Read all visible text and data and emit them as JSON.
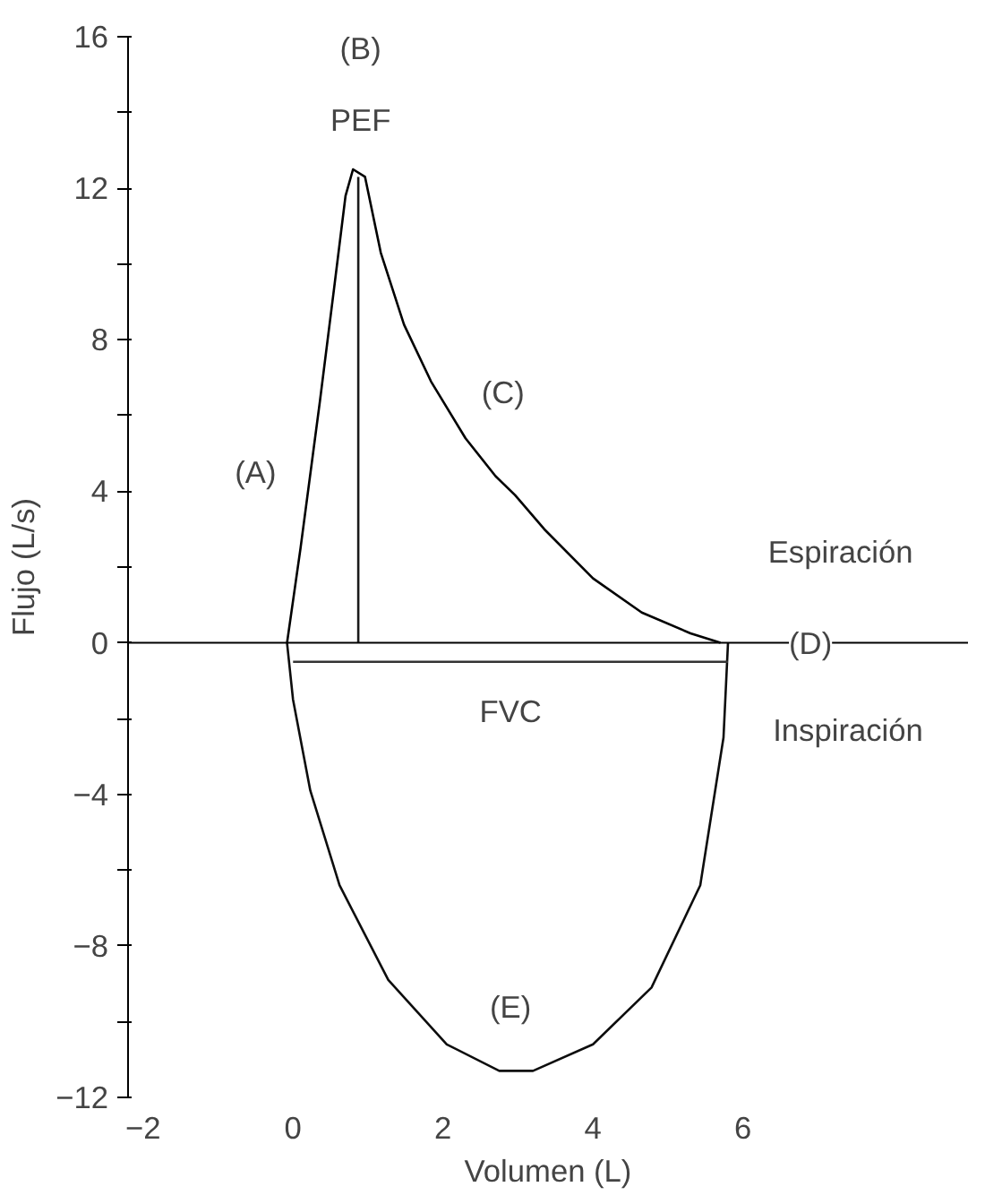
{
  "chart_data": {
    "type": "line",
    "xlabel": "Volumen (L)",
    "ylabel": "Flujo (L/s)",
    "xlim": [
      -2.2,
      9.0
    ],
    "ylim": [
      -12,
      16
    ],
    "xticks": [
      -2,
      0,
      2,
      4,
      6
    ],
    "yticks": [
      -12,
      {
        "value": -10,
        "label": null
      },
      -8,
      {
        "value": -6,
        "label": null
      },
      -4,
      {
        "value": -2,
        "label": null
      },
      0,
      {
        "value": 2,
        "label": null
      },
      4,
      {
        "value": 6,
        "label": null
      },
      8,
      {
        "value": 10,
        "label": null
      },
      12,
      {
        "value": 14,
        "label": null
      },
      16
    ],
    "grid": false,
    "marker": "none",
    "line_style": "solid",
    "series": [
      {
        "color": "#000000",
        "x": [
          -0.08,
          0.1,
          0.36,
          0.55,
          0.7,
          0.8,
          0.96,
          1.17,
          1.48,
          1.84,
          2.3,
          2.7,
          2.96,
          3.35,
          4.0,
          4.65,
          5.3,
          5.7
        ],
        "values": [
          0,
          2.5,
          6.4,
          9.4,
          11.8,
          12.5,
          12.3,
          10.3,
          8.4,
          6.9,
          5.4,
          4.4,
          3.9,
          3.0,
          1.7,
          0.8,
          0.25,
          0
        ]
      },
      {
        "color": "#0d0d0d",
        "x": [
          -0.08,
          0,
          0.23,
          0.62,
          1.27,
          2.05,
          2.75,
          3.2,
          4.0,
          4.78,
          5.43,
          5.74,
          5.8
        ],
        "values": [
          0,
          -1.5,
          -3.9,
          -6.4,
          -8.9,
          -10.6,
          -11.3,
          -11.3,
          -10.6,
          -9.1,
          -6.4,
          -2.5,
          0
        ]
      },
      {
        "color": "#1a1a1a",
        "x": [
          0.87,
          0.87
        ],
        "values": [
          0,
          12.3
        ]
      },
      {
        "color": "#333333",
        "x": [
          0,
          5.8
        ],
        "values": [
          -0.5,
          -0.5
        ]
      }
    ],
    "ref_lines": [
      {
        "axis": "y",
        "value": 0,
        "color": "#000000"
      }
    ],
    "annotations": [
      "(A)",
      "(B)",
      "PEF",
      "(C)",
      "Espiración",
      "(D)",
      "FVC",
      "Inspiración",
      "(E)"
    ]
  }
}
